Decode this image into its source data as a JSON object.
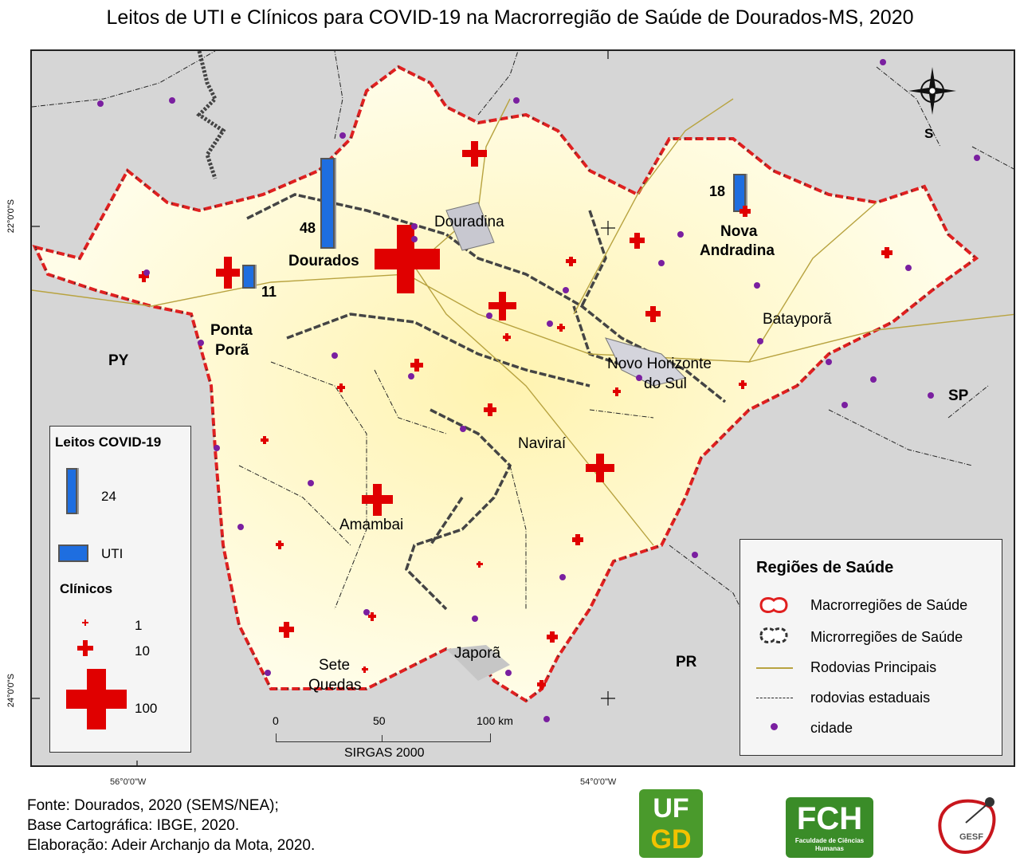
{
  "title": "Leitos de UTI e Clínicos para COVID-19 na Macrorregião de Saúde de Dourados-MS, 2020",
  "coords": {
    "lat_top": "22°0'0\"S",
    "lat_bottom": "24°0'0\"S",
    "lon_left": "56°0'0\"W",
    "lon_right": "54°0'0\"W"
  },
  "map_labels": {
    "py": "PY",
    "sp": "SP",
    "pr": "PR",
    "north": "S",
    "douradina": "Douradina",
    "dourados": "Dourados",
    "nova_andradina_1": "Nova",
    "nova_andradina_2": "Andradina",
    "ponta_pora_1": "Ponta",
    "ponta_pora_2": "Porã",
    "bataypora": "Batayporã",
    "novo_horizonte_1": "Novo Horizonte",
    "novo_horizonte_2": "do Sul",
    "navirai": "Naviraí",
    "amambai": "Amambai",
    "japora": "Japorã",
    "sete_quedas_1": "Sete",
    "sete_quedas_2": "Quedas"
  },
  "uti_values": {
    "dourados": "48",
    "nova_andradina": "18",
    "ponta_pora": "11"
  },
  "legend_left": {
    "title": "Leitos COVID-19",
    "bar_value": "24",
    "uti": "UTI",
    "clinicos": "Clínicos",
    "c1": "1",
    "c10": "10",
    "c100": "100"
  },
  "legend_right": {
    "title": "Regiões de Saúde",
    "items": [
      "Macrorregiões de Saúde",
      "Microrregiões de Saúde",
      "Rodovias Principais",
      "rodovias estaduais",
      "cidade"
    ]
  },
  "scale": {
    "s0": "0",
    "s50": "50",
    "s100": "100 km",
    "datum": "SIRGAS 2000"
  },
  "footer": {
    "line1": "Fonte: Dourados, 2020 (SEMS/NEA);",
    "line2": "Base Cartográfica: IBGE, 2020.",
    "line3": "Elaboração: Adeir Archanjo da Mota, 2020."
  },
  "logos": {
    "ufgd_top": "UF",
    "ufgd_bottom": "GD",
    "fch": "FCH",
    "fch_sub": "Faculdade de Ciências Humanas",
    "gesf": "GESF"
  },
  "colors": {
    "macro_border": "#e02020",
    "uti_bar": "#1e6ee0",
    "clinic_cross": "#e00000",
    "city": "#7a1fa0",
    "region_fill": "#fffbd9"
  }
}
